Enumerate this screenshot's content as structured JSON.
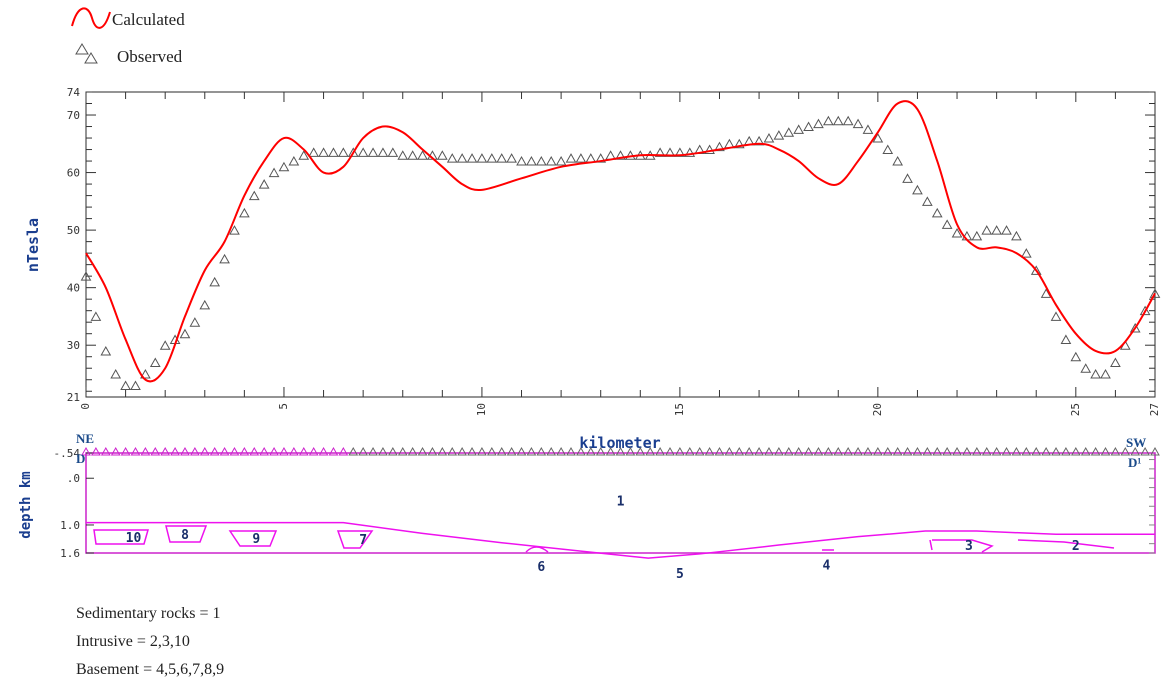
{
  "legend": {
    "calculated_label": "Calculated",
    "observed_label": "Observed",
    "calculated_color": "#ff0000",
    "observed_color": "#555555"
  },
  "profile_ends": {
    "left_top": "NE",
    "left_bottom": "D",
    "right_top": "SW",
    "right_bottom": "D¹"
  },
  "notes": [
    "Sedimentary rocks = 1",
    "Intrusive = 2,3,10",
    "Basement = 4,5,6,7,8,9"
  ],
  "chart_data": [
    {
      "type": "line",
      "xlabel": "kilometer",
      "ylabel": "nTesla",
      "xlim": [
        0,
        27
      ],
      "ylim": [
        21,
        74
      ],
      "x_ticks": [
        0,
        5,
        10,
        15,
        20,
        25,
        27
      ],
      "y_ticks": [
        21,
        30,
        40,
        50,
        60,
        70,
        74
      ],
      "series": [
        {
          "name": "Calculated",
          "color": "#ff0000",
          "x": [
            0,
            0.5,
            1.0,
            1.5,
            2.0,
            2.5,
            3.0,
            3.5,
            4.0,
            4.5,
            5.0,
            5.5,
            6.0,
            6.5,
            7.0,
            7.5,
            8.0,
            8.5,
            9.0,
            9.5,
            10.0,
            11.0,
            12.0,
            13.0,
            14.0,
            15.0,
            16.0,
            17.0,
            17.5,
            18.0,
            18.5,
            19.0,
            19.5,
            20.0,
            20.5,
            21.0,
            21.5,
            22.0,
            22.5,
            23.0,
            23.5,
            24.0,
            24.5,
            25.0,
            25.5,
            26.0,
            26.5,
            27.0
          ],
          "y": [
            46,
            40,
            31,
            24,
            26,
            35,
            43,
            48,
            56,
            62,
            66,
            64,
            60,
            61,
            66,
            68,
            67,
            64,
            61,
            58,
            57,
            59,
            61,
            62,
            63,
            63,
            64,
            65,
            64,
            62,
            59,
            58,
            62,
            67,
            72,
            71,
            62,
            51,
            47,
            47,
            46,
            43,
            37,
            32,
            29,
            29,
            33,
            39
          ]
        },
        {
          "name": "Observed",
          "color": "#555555",
          "x": [
            0,
            0.25,
            0.5,
            0.75,
            1.0,
            1.25,
            1.5,
            1.75,
            2.0,
            2.25,
            2.5,
            2.75,
            3.0,
            3.25,
            3.5,
            3.75,
            4.0,
            4.25,
            4.5,
            4.75,
            5.0,
            5.25,
            5.5,
            5.75,
            6.0,
            6.25,
            6.5,
            6.75,
            7.0,
            7.25,
            7.5,
            7.75,
            8.0,
            8.25,
            8.5,
            8.75,
            9.0,
            9.25,
            9.5,
            9.75,
            10.0,
            10.25,
            10.5,
            10.75,
            11.0,
            11.25,
            11.5,
            11.75,
            12.0,
            12.25,
            12.5,
            12.75,
            13.0,
            13.25,
            13.5,
            13.75,
            14.0,
            14.25,
            14.5,
            14.75,
            15.0,
            15.25,
            15.5,
            15.75,
            16.0,
            16.25,
            16.5,
            16.75,
            17.0,
            17.25,
            17.5,
            17.75,
            18.0,
            18.25,
            18.5,
            18.75,
            19.0,
            19.25,
            19.5,
            19.75,
            20.0,
            20.25,
            20.5,
            20.75,
            21.0,
            21.25,
            21.5,
            21.75,
            22.0,
            22.25,
            22.5,
            22.75,
            23.0,
            23.25,
            23.5,
            23.75,
            24.0,
            24.25,
            24.5,
            24.75,
            25.0,
            25.25,
            25.5,
            25.75,
            26.0,
            26.25,
            26.5,
            26.75,
            27.0
          ],
          "y": [
            42,
            35,
            29,
            25,
            23,
            23,
            25,
            27,
            30,
            31,
            32,
            34,
            37,
            41,
            45,
            50,
            53,
            56,
            58,
            60,
            61,
            62,
            63,
            63.5,
            63.5,
            63.5,
            63.5,
            63.5,
            63.5,
            63.5,
            63.5,
            63.5,
            63,
            63,
            63,
            63,
            63,
            62.5,
            62.5,
            62.5,
            62.5,
            62.5,
            62.5,
            62.5,
            62,
            62,
            62,
            62,
            62,
            62.5,
            62.5,
            62.5,
            62.5,
            63,
            63,
            63,
            63,
            63,
            63.5,
            63.5,
            63.5,
            63.5,
            64,
            64,
            64.5,
            65,
            65,
            65.5,
            65.5,
            66,
            66.5,
            67,
            67.5,
            68,
            68.5,
            69,
            69,
            69,
            68.5,
            67.5,
            66,
            64,
            62,
            59,
            57,
            55,
            53,
            51,
            49.5,
            49,
            49,
            50,
            50,
            50,
            49,
            46,
            43,
            39,
            35,
            31,
            28,
            26,
            25,
            25,
            27,
            30,
            33,
            36,
            39
          ]
        }
      ]
    },
    {
      "type": "area",
      "xlabel": "",
      "ylabel": "depth km",
      "xlim": [
        0,
        27
      ],
      "ylim": [
        1.6,
        -0.54
      ],
      "y_ticks": [
        "-.54",
        ".0",
        "1.0",
        "1.6"
      ],
      "boundary": {
        "color": "#ee11ee",
        "x": [
          0,
          6.5,
          8.5,
          10.5,
          12.5,
          14.2,
          15.5,
          17.5,
          19.5,
          21.2,
          22.5,
          24.5,
          27
        ],
        "y": [
          0.95,
          0.95,
          1.18,
          1.38,
          1.56,
          1.71,
          1.62,
          1.43,
          1.25,
          1.13,
          1.13,
          1.2,
          1.2
        ]
      },
      "bodies": [
        {
          "label": "1",
          "x": 13.5,
          "y": 0.5
        },
        {
          "label": "10",
          "x": 1.2,
          "y": 1.28
        },
        {
          "label": "8",
          "x": 2.5,
          "y": 1.22
        },
        {
          "label": "9",
          "x": 4.3,
          "y": 1.3
        },
        {
          "label": "7",
          "x": 7.0,
          "y": 1.32
        },
        {
          "label": "6",
          "x": 11.5,
          "y": 1.9
        },
        {
          "label": "5",
          "x": 15.0,
          "y": 2.05
        },
        {
          "label": "4",
          "x": 18.7,
          "y": 1.87
        },
        {
          "label": "3",
          "x": 22.3,
          "y": 1.45
        },
        {
          "label": "2",
          "x": 25.0,
          "y": 1.45
        }
      ]
    }
  ]
}
